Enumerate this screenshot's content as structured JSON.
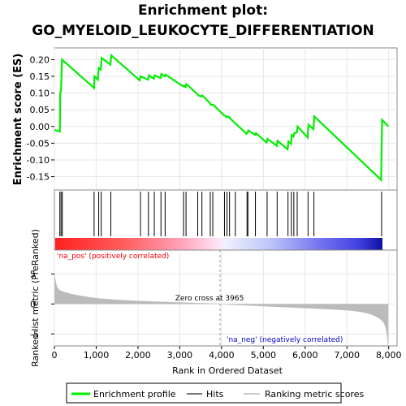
{
  "chart_data": {
    "type": "line",
    "title_line1": "Enrichment plot:",
    "title_line2": "GO_MYELOID_LEUKOCYTE_DIFFERENTIATION",
    "es_panel": {
      "ylabel": "Enrichment score (ES)",
      "ylim": [
        -0.19,
        0.235
      ],
      "yticks": [
        -0.15,
        -0.1,
        -0.05,
        0.0,
        0.05,
        0.1,
        0.15,
        0.2
      ],
      "ytick_labels": [
        "-0.15",
        "-0.10",
        "-0.05",
        "0.00",
        "0.05",
        "0.10",
        "0.15",
        "0.20"
      ],
      "line_color": "#00ee00",
      "series": [
        {
          "x": [
            0,
            130,
            140,
            160,
            180,
            950,
            960,
            1040,
            1060,
            1110,
            1130,
            1340,
            1360,
            2040,
            2060,
            2240,
            2260,
            2380,
            2400,
            2540,
            2560,
            2640,
            2660,
            3080,
            3100,
            3140,
            3160,
            3420,
            3440,
            3520,
            3540,
            3720,
            3740,
            3800,
            4060,
            4080,
            4120,
            4140,
            4180,
            4200,
            4320,
            4340,
            4600,
            4620,
            4640,
            4800,
            4820,
            5080,
            5100,
            5320,
            5340,
            5580,
            5600,
            5660,
            5680,
            5720,
            5740,
            5800,
            5820,
            6060,
            6080,
            6200,
            6220,
            7820,
            7840,
            7990
          ],
          "y": [
            -0.01,
            -0.015,
            0.1,
            0.11,
            0.2,
            0.115,
            0.15,
            0.14,
            0.175,
            0.17,
            0.205,
            0.185,
            0.213,
            0.138,
            0.15,
            0.14,
            0.153,
            0.143,
            0.153,
            0.145,
            0.157,
            0.15,
            0.155,
            0.12,
            0.122,
            0.118,
            0.127,
            0.097,
            0.093,
            0.09,
            0.093,
            0.07,
            0.065,
            0.065,
            0.033,
            0.033,
            0.028,
            0.03,
            0.028,
            0.025,
            0.01,
            0.008,
            -0.022,
            -0.018,
            -0.012,
            -0.025,
            -0.02,
            -0.048,
            -0.037,
            -0.058,
            -0.043,
            -0.068,
            -0.045,
            -0.052,
            -0.025,
            -0.03,
            -0.02,
            -0.018,
            0.0,
            -0.033,
            0.005,
            -0.008,
            0.03,
            -0.16,
            0.02,
            0.0
          ]
        }
      ]
    },
    "hits": [
      130,
      160,
      190,
      950,
      1060,
      1120,
      1350,
      2060,
      2250,
      2390,
      2550,
      2650,
      3090,
      3150,
      3430,
      3530,
      3730,
      3790,
      4070,
      4130,
      4190,
      4330,
      4610,
      4630,
      4810,
      5090,
      5330,
      5590,
      5670,
      5730,
      5810,
      6070,
      6210,
      7830
    ],
    "ranked_panel": {
      "xlabel": "Rank in Ordered Dataset",
      "ylabel": "Ranked list metric (PreRanked)",
      "ylim": [
        -7,
        9
      ],
      "yticks": [
        -5,
        0,
        5
      ],
      "ytick_labels": [
        "-5",
        "0",
        "5"
      ],
      "xlim": [
        0,
        8200
      ],
      "xticks": [
        0,
        1000,
        2000,
        3000,
        4000,
        5000,
        6000,
        7000,
        8000
      ],
      "xtick_labels": [
        "0",
        "1,000",
        "2,000",
        "3,000",
        "4,000",
        "5,000",
        "6,000",
        "7,000",
        "8,000"
      ],
      "fill_color": "#bbbbbb",
      "zero_cross": 3965,
      "zero_cross_label": "Zero cross at 3965",
      "pos_label": "'na_pos' (positively correlated)",
      "neg_label": "'na_neg' (negatively correlated)",
      "pos_label_color": "#ee0000",
      "neg_label_color": "#0000cc"
    },
    "legend": {
      "placement": "bottom",
      "items": [
        {
          "label": "Enrichment profile",
          "color": "#00ee00"
        },
        {
          "label": "Hits",
          "color": "#777777"
        },
        {
          "label": "Ranking metric scores",
          "color": "#cccccc"
        }
      ]
    }
  }
}
